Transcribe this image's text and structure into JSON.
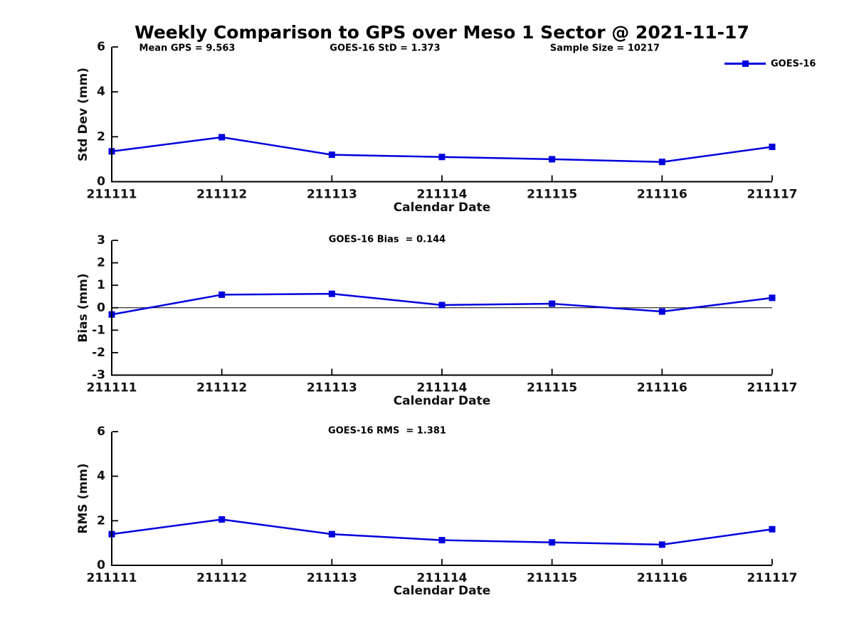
{
  "title": "Weekly Comparison to GPS over Meso 1 Sector @ 2021-11-17",
  "legend": {
    "label": "GOES-16",
    "position": "top-right"
  },
  "colors": {
    "series": "#0000dd",
    "axis": "#000000",
    "text": "#111111",
    "background": "#ffffff"
  },
  "chart_data": [
    {
      "type": "line",
      "categories": [
        "211111",
        "211112",
        "211113",
        "211114",
        "211115",
        "211116",
        "211117"
      ],
      "series": [
        {
          "name": "GOES-16",
          "values": [
            1.35,
            1.98,
            1.2,
            1.1,
            1.0,
            0.88,
            1.55
          ]
        }
      ],
      "annotations": [
        "Mean GPS = 9.563",
        "GOES-16 StD = 1.373",
        "Sample Size = 10217"
      ],
      "xlabel": "Calendar Date",
      "ylabel": "Std Dev (mm)",
      "ylim": [
        0,
        6
      ],
      "yticks": [
        0,
        2,
        4,
        6
      ],
      "zero_line": false,
      "grid": false,
      "legend_visible": true,
      "marker": "square"
    },
    {
      "type": "line",
      "categories": [
        "211111",
        "211112",
        "211113",
        "211114",
        "211115",
        "211116",
        "211117"
      ],
      "series": [
        {
          "name": "GOES-16",
          "values": [
            -0.3,
            0.58,
            0.62,
            0.12,
            0.18,
            -0.17,
            0.44
          ]
        }
      ],
      "annotations": [
        "GOES-16 Bias  = 0.144"
      ],
      "xlabel": "Calendar Date",
      "ylabel": "Bias (mm)",
      "ylim": [
        -3,
        3
      ],
      "yticks": [
        -3,
        -2,
        -1,
        0,
        1,
        2,
        3
      ],
      "zero_line": true,
      "grid": false,
      "legend_visible": false,
      "marker": "square"
    },
    {
      "type": "line",
      "categories": [
        "211111",
        "211112",
        "211113",
        "211114",
        "211115",
        "211116",
        "211117"
      ],
      "series": [
        {
          "name": "GOES-16",
          "values": [
            1.4,
            2.06,
            1.4,
            1.13,
            1.03,
            0.93,
            1.62
          ]
        }
      ],
      "annotations": [
        "GOES-16 RMS  = 1.381"
      ],
      "xlabel": "Calendar Date",
      "ylabel": "RMS (mm)",
      "ylim": [
        0,
        6
      ],
      "yticks": [
        0,
        2,
        4,
        6
      ],
      "zero_line": false,
      "grid": false,
      "legend_visible": false,
      "marker": "square"
    }
  ]
}
